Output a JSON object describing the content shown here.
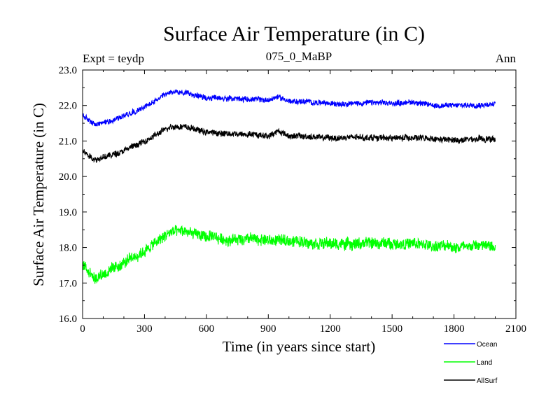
{
  "chart_data": {
    "type": "line",
    "title": "Surface Air Temperature (in C)",
    "subtitle_left": "Expt = teydp",
    "subtitle_center": "075_0_MaBP",
    "subtitle_right": "Ann",
    "xlabel": "Time (in years since start)",
    "ylabel": "Surface Air Temperature (in C)",
    "xlim": [
      0,
      2100
    ],
    "ylim": [
      16.0,
      23.0
    ],
    "xticks": [
      "0",
      "300",
      "600",
      "900",
      "1200",
      "1500",
      "1800",
      "2100"
    ],
    "yticks": [
      "16.0",
      "17.0",
      "18.0",
      "19.0",
      "20.0",
      "21.0",
      "22.0",
      "23.0"
    ],
    "legend_position": "bottom-right, outside plot",
    "series": [
      {
        "name": "Ocean",
        "color": "#0000ff",
        "noise": 0.07,
        "points": [
          [
            0,
            21.72
          ],
          [
            60,
            21.45
          ],
          [
            150,
            21.6
          ],
          [
            300,
            21.95
          ],
          [
            430,
            22.38
          ],
          [
            500,
            22.35
          ],
          [
            600,
            22.22
          ],
          [
            700,
            22.2
          ],
          [
            800,
            22.18
          ],
          [
            900,
            22.15
          ],
          [
            950,
            22.25
          ],
          [
            1000,
            22.12
          ],
          [
            1100,
            22.1
          ],
          [
            1200,
            22.05
          ],
          [
            1300,
            22.06
          ],
          [
            1400,
            22.08
          ],
          [
            1500,
            22.06
          ],
          [
            1600,
            22.1
          ],
          [
            1700,
            22.0
          ],
          [
            1800,
            22.0
          ],
          [
            1900,
            22.02
          ],
          [
            2000,
            22.03
          ]
        ]
      },
      {
        "name": "Land",
        "color": "#00ff00",
        "noise": 0.15,
        "points": [
          [
            0,
            17.55
          ],
          [
            60,
            17.15
          ],
          [
            150,
            17.4
          ],
          [
            300,
            17.9
          ],
          [
            430,
            18.45
          ],
          [
            500,
            18.45
          ],
          [
            600,
            18.3
          ],
          [
            700,
            18.22
          ],
          [
            800,
            18.25
          ],
          [
            900,
            18.2
          ],
          [
            1000,
            18.2
          ],
          [
            1100,
            18.15
          ],
          [
            1200,
            18.1
          ],
          [
            1300,
            18.1
          ],
          [
            1400,
            18.12
          ],
          [
            1500,
            18.12
          ],
          [
            1600,
            18.1
          ],
          [
            1700,
            18.05
          ],
          [
            1800,
            18.02
          ],
          [
            1900,
            18.05
          ],
          [
            2000,
            18.05
          ]
        ]
      },
      {
        "name": "AllSurf",
        "color": "#000000",
        "noise": 0.08,
        "points": [
          [
            0,
            20.72
          ],
          [
            60,
            20.48
          ],
          [
            150,
            20.62
          ],
          [
            300,
            20.98
          ],
          [
            430,
            21.42
          ],
          [
            500,
            21.4
          ],
          [
            600,
            21.25
          ],
          [
            700,
            21.2
          ],
          [
            800,
            21.2
          ],
          [
            900,
            21.15
          ],
          [
            950,
            21.28
          ],
          [
            1000,
            21.15
          ],
          [
            1100,
            21.12
          ],
          [
            1200,
            21.08
          ],
          [
            1300,
            21.1
          ],
          [
            1400,
            21.1
          ],
          [
            1500,
            21.08
          ],
          [
            1600,
            21.1
          ],
          [
            1700,
            21.05
          ],
          [
            1800,
            21.02
          ],
          [
            1900,
            21.05
          ],
          [
            2000,
            21.05
          ]
        ]
      }
    ]
  }
}
